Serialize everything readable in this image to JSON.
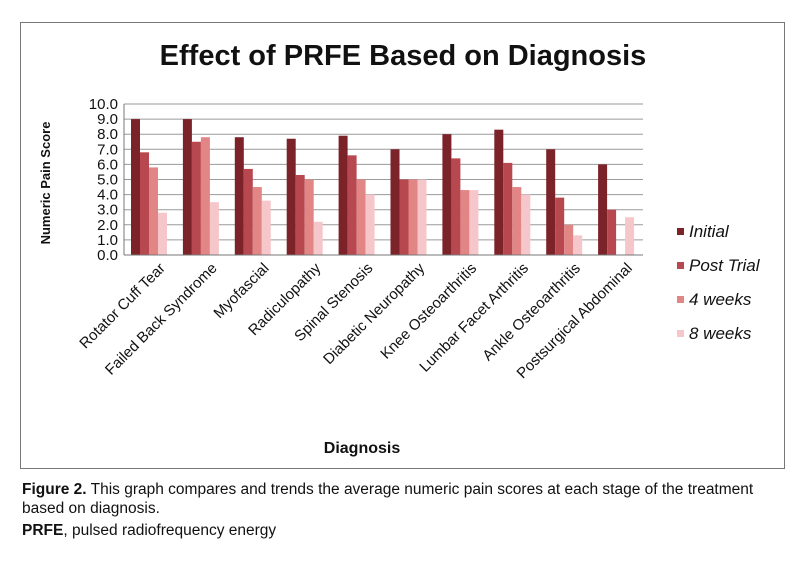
{
  "chart_data": {
    "type": "bar",
    "title": "Effect of PRFE Based on Diagnosis",
    "xlabel": "Diagnosis",
    "ylabel": "Numeric Pain Score",
    "ylim": [
      0,
      10
    ],
    "yticks": [
      "0.0",
      "1.0",
      "2.0",
      "3.0",
      "4.0",
      "5.0",
      "6.0",
      "7.0",
      "8.0",
      "9.0",
      "10.0"
    ],
    "grid": true,
    "legend_position": "right",
    "categories": [
      "Rotator Cuff Tear",
      "Failed Back Syndrome",
      "Myofascial",
      "Radiculopathy",
      "Spinal Stenosis",
      "Diabetic Neuropathy",
      "Knee Osteoarthritis",
      "Lumbar Facet Arthritis",
      "Ankle Osteoarthritis",
      "Postsurgical Abdominal"
    ],
    "series": [
      {
        "name": "Initial",
        "color": "#7b2329",
        "values": [
          9.0,
          9.0,
          7.8,
          7.7,
          7.9,
          7.0,
          8.0,
          8.3,
          7.0,
          6.0
        ]
      },
      {
        "name": "Post Trial",
        "color": "#b84850",
        "values": [
          6.8,
          7.5,
          5.7,
          5.3,
          6.6,
          5.0,
          6.4,
          6.1,
          3.8,
          3.0
        ]
      },
      {
        "name": "4 weeks",
        "color": "#e28585",
        "values": [
          5.8,
          7.8,
          4.5,
          5.0,
          5.0,
          5.0,
          4.3,
          4.5,
          2.0,
          null
        ]
      },
      {
        "name": "8 weeks",
        "color": "#f6c7ca",
        "values": [
          2.8,
          3.5,
          3.6,
          2.2,
          4.0,
          5.0,
          4.3,
          4.0,
          1.3,
          2.5
        ]
      }
    ]
  },
  "caption": {
    "label": "Figure 2.",
    "text": " This graph compares and trends the average numeric pain scores at each stage of the treatment based on diagnosis.",
    "abbrev_term": "PRFE",
    "abbrev_text": ", pulsed radiofrequency energy"
  }
}
